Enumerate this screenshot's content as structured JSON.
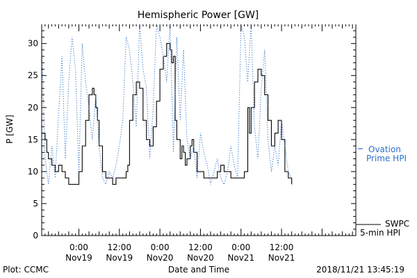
{
  "chart_data": {
    "type": "line",
    "title": "Hemispheric Power [GW]",
    "ylabel": "P [GW]",
    "xlabel": "Date and Time",
    "ylim": [
      0,
      33
    ],
    "yticks": [
      0,
      5,
      10,
      15,
      20,
      25,
      30
    ],
    "xlim": [
      -11,
      82
    ],
    "x_tick_labels": [
      {
        "x": 0,
        "line1": "0:00",
        "line2": "Nov19"
      },
      {
        "x": 12,
        "line1": "12:00",
        "line2": "Nov19"
      },
      {
        "x": 24,
        "line1": "0:00",
        "line2": "Nov20"
      },
      {
        "x": 36,
        "line1": "12:00",
        "line2": "Nov20"
      },
      {
        "x": 48,
        "line1": "0:00",
        "line2": "Nov21"
      },
      {
        "x": 60,
        "line1": "12:00",
        "line2": "Nov21"
      }
    ],
    "series": [
      {
        "name": "SWPC 5-min HPI",
        "legend_line1": "SWPC",
        "legend_line2": "5-min HPI",
        "color": "#000000",
        "style": "solid",
        "x": [
          -11,
          -10,
          -9.5,
          -9,
          -8,
          -7,
          -6,
          -5,
          -4,
          -3,
          -2,
          -1,
          0,
          1,
          2,
          3,
          4,
          4.5,
          5,
          5.5,
          6,
          7,
          8,
          9,
          10,
          11,
          12,
          13,
          14,
          14.5,
          15,
          16,
          17,
          18,
          19,
          20,
          21,
          22,
          23,
          24,
          25,
          26,
          27,
          27.5,
          28,
          28.5,
          29,
          30,
          30.5,
          31,
          31.5,
          32,
          33,
          33.5,
          34,
          35,
          36,
          37,
          38,
          39,
          40,
          41,
          42,
          43,
          44,
          45,
          46,
          47,
          48,
          49,
          50,
          50.5,
          51,
          52,
          53,
          54,
          55,
          56,
          57,
          58,
          59,
          60,
          61,
          62,
          63
        ],
        "values": [
          16,
          15,
          13,
          12,
          11,
          10,
          11,
          10,
          9,
          8,
          8,
          8,
          10,
          14,
          18,
          22,
          23,
          22,
          20,
          18,
          14,
          10,
          9,
          9,
          8,
          9,
          9,
          9,
          10,
          11,
          18,
          22,
          24,
          23,
          18,
          15,
          14,
          17,
          21,
          26,
          28,
          30,
          29,
          27,
          28,
          18,
          15,
          12,
          14,
          13,
          11,
          12,
          14,
          15,
          13,
          10,
          10,
          9,
          9,
          9,
          9,
          10,
          11,
          10,
          10,
          9,
          9,
          9,
          9,
          10,
          20,
          16,
          20,
          24,
          26,
          25,
          22,
          18,
          14,
          16,
          18,
          15,
          10,
          9,
          8
        ],
        "_note": "approximate trace"
      },
      {
        "name": "Ovation Prime HPI",
        "legend_line1": "Ovation",
        "legend_line2": "Prime HPI",
        "color": "#2a6fc9",
        "style": "dotted",
        "x": [
          -11,
          -10,
          -9,
          -8,
          -7,
          -6,
          -5,
          -4,
          -3,
          -2,
          -1,
          0,
          1,
          2,
          3,
          4,
          5,
          6,
          7,
          8,
          9,
          10,
          11,
          12,
          13,
          14,
          15,
          16,
          17,
          18,
          19,
          20,
          21,
          22,
          23,
          24,
          25,
          26,
          27,
          28,
          29,
          30,
          31,
          32,
          33,
          34,
          35,
          36,
          37,
          38,
          39,
          40,
          41,
          42,
          43,
          44,
          45,
          46,
          47,
          48,
          49,
          50,
          51,
          52,
          53,
          54,
          55,
          56,
          57,
          58,
          59,
          60,
          61,
          62,
          63
        ],
        "values": [
          30,
          12,
          8,
          14,
          9,
          19,
          28,
          12,
          24,
          31,
          26,
          10,
          30,
          24,
          20,
          15,
          22,
          14,
          9,
          8,
          10,
          9,
          11,
          14,
          18,
          31,
          29,
          24,
          17,
          33,
          26,
          23,
          12,
          20,
          33,
          31,
          28,
          24,
          33,
          13,
          31,
          18,
          29,
          15,
          12,
          14,
          9,
          16,
          13,
          11,
          8,
          10,
          12,
          9,
          8,
          10,
          14,
          11,
          9,
          33,
          31,
          24,
          33,
          17,
          12,
          23,
          29,
          15,
          10,
          14,
          11,
          18,
          14,
          10,
          9
        ]
      }
    ],
    "footer_left": "Plot: CCMC",
    "footer_right": "2018/11/21 13:45:19"
  }
}
